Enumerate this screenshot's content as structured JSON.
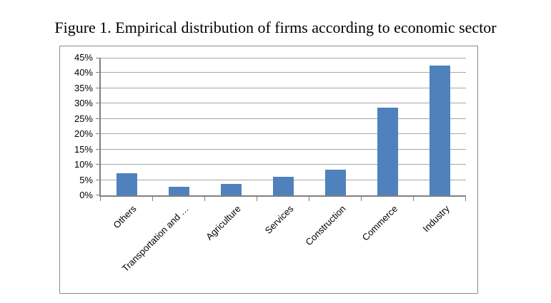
{
  "figure": {
    "title": "Figure 1. Empirical distribution of firms according to economic sector"
  },
  "chart_data": {
    "type": "bar",
    "title": "Figure 1. Empirical distribution of firms according to economic sector",
    "categories": [
      "Others",
      "Transportation and …",
      "Agriculture",
      "Services",
      "Construction",
      "Commerce",
      "Industry"
    ],
    "values": [
      7.3,
      2.7,
      3.8,
      6.0,
      8.4,
      28.7,
      42.4
    ],
    "xlabel": "",
    "ylabel": "",
    "ylim": [
      0,
      45
    ],
    "ytick_step": 5,
    "yticks": [
      "0%",
      "5%",
      "10%",
      "15%",
      "20%",
      "25%",
      "30%",
      "35%",
      "40%",
      "45%"
    ],
    "grid": true,
    "legend": "none",
    "colors": {
      "bar": "#4f81bd",
      "gridline": "#a6a6a6",
      "axis": "#808080",
      "frame_border": "#8c8c8c",
      "text": "#000000",
      "background": "#ffffff"
    }
  }
}
